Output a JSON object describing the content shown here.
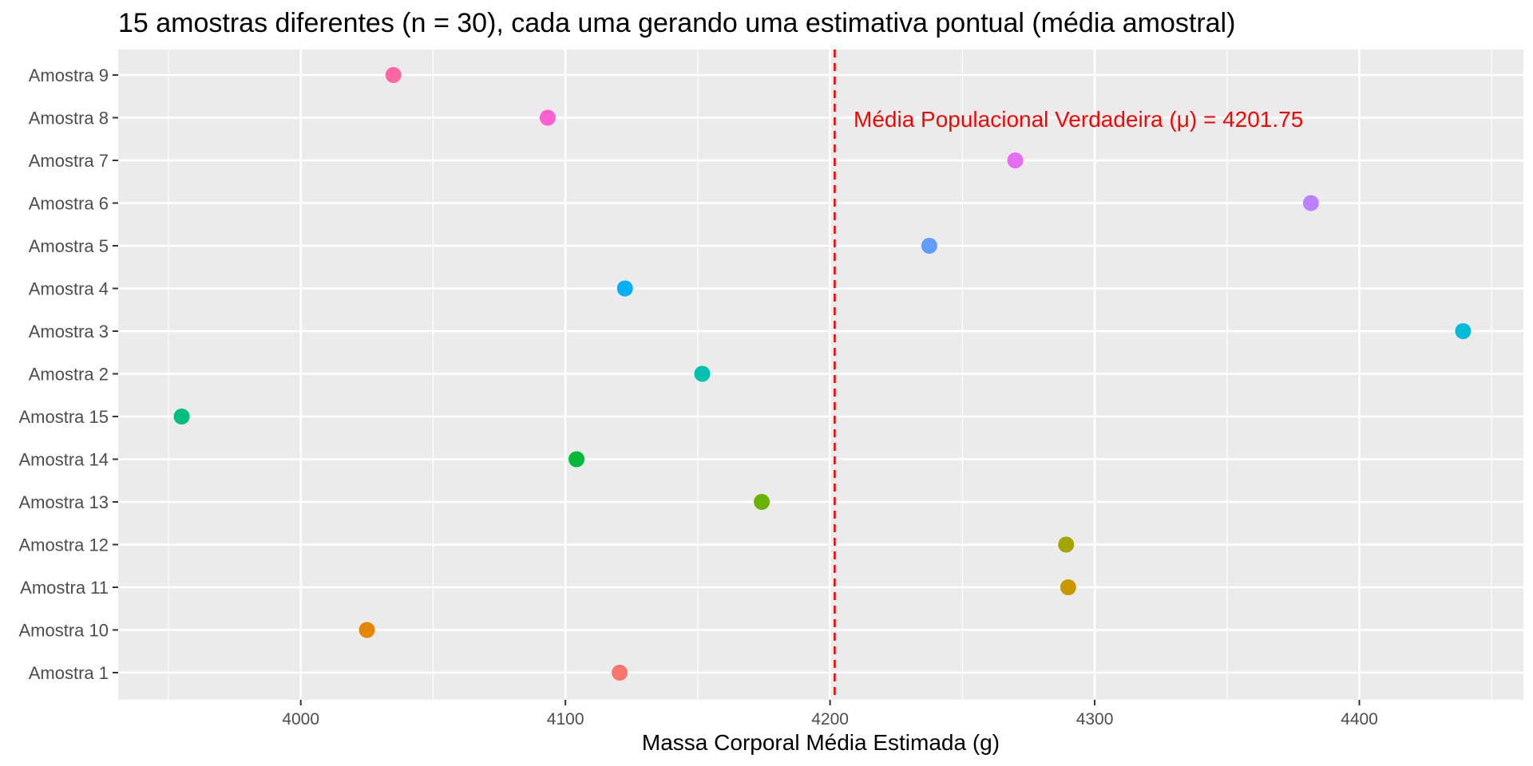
{
  "chart_data": {
    "type": "scatter",
    "title": "15 amostras diferentes (n = 30), cada uma gerando uma estimativa pontual (média amostral)",
    "xlabel": "Massa Corporal Média Estimada (g)",
    "ylabel": "",
    "xlim": [
      3931,
      4462
    ],
    "x_ticks": [
      "4000",
      "4100",
      "4200",
      "4300",
      "4400"
    ],
    "x_tick_values": [
      4000,
      4100,
      4200,
      4300,
      4400
    ],
    "categories": [
      "Amostra 1",
      "Amostra 10",
      "Amostra 11",
      "Amostra 12",
      "Amostra 13",
      "Amostra 14",
      "Amostra 15",
      "Amostra 2",
      "Amostra 3",
      "Amostra 4",
      "Amostra 5",
      "Amostra 6",
      "Amostra 7",
      "Amostra 8",
      "Amostra 9"
    ],
    "values": [
      4120.5,
      4025.0,
      4290.0,
      4289.2,
      4174.2,
      4104.2,
      3955.0,
      4151.7,
      4439.2,
      4122.5,
      4237.5,
      4381.7,
      4270.0,
      4093.3,
      4035.0
    ],
    "point_colors": [
      "#F8766D",
      "#E58700",
      "#C99800",
      "#A3A500",
      "#6BB100",
      "#00BA38",
      "#00BF7D",
      "#00C0AF",
      "#00BCD8",
      "#00B0F6",
      "#619CFF",
      "#B983FF",
      "#E76BF3",
      "#FD61D1",
      "#FF67A4"
    ],
    "grid": true,
    "legend": "none",
    "reference_line": {
      "value": 4201.75,
      "label": "Média Populacional Verdadeira (μ) = 4201.75",
      "color": "#FF0000",
      "style": "dashed"
    }
  }
}
